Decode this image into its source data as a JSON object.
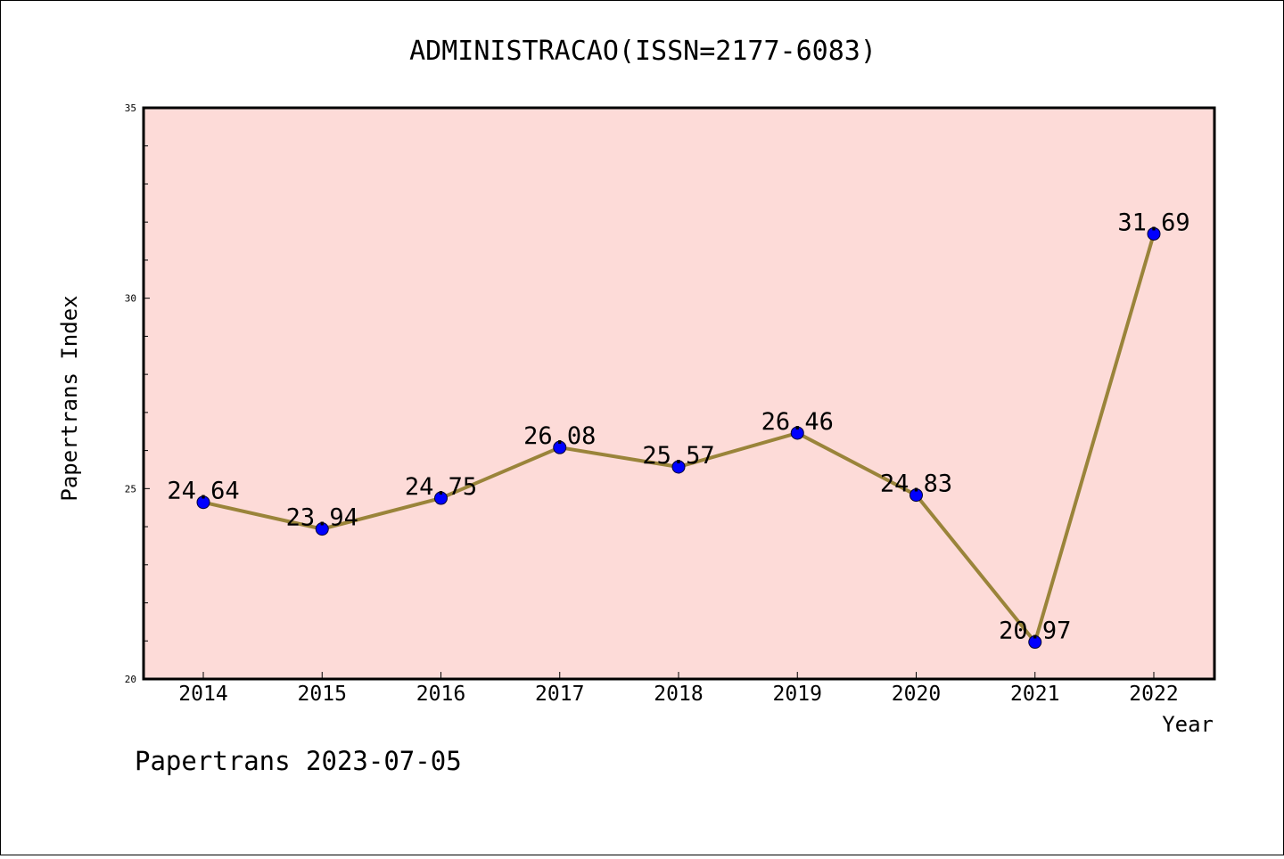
{
  "chart_data": {
    "type": "line",
    "title": "ADMINISTRACAO(ISSN=2177-6083)",
    "xlabel": "Year",
    "ylabel": "Papertrans Index",
    "categories": [
      "2014",
      "2015",
      "2016",
      "2017",
      "2018",
      "2019",
      "2020",
      "2021",
      "2022"
    ],
    "series": [
      {
        "values": [
          24.64,
          23.94,
          24.75,
          26.08,
          25.57,
          26.46,
          24.83,
          20.97,
          31.69
        ],
        "value_labels": [
          "24.64",
          "23.94",
          "24.75",
          "26.08",
          "25.57",
          "26.46",
          "24.83",
          "20.97",
          "31.69"
        ]
      }
    ],
    "ylim": [
      20,
      35
    ],
    "yticks": [
      "20",
      "25",
      "30",
      "35"
    ],
    "grid": false,
    "legend": "none",
    "colors": {
      "plot_background": "#fddbd8",
      "line": "#9a843a",
      "marker": "#0000ff"
    }
  },
  "footer": {
    "text": "Papertrans 2023-07-05"
  }
}
